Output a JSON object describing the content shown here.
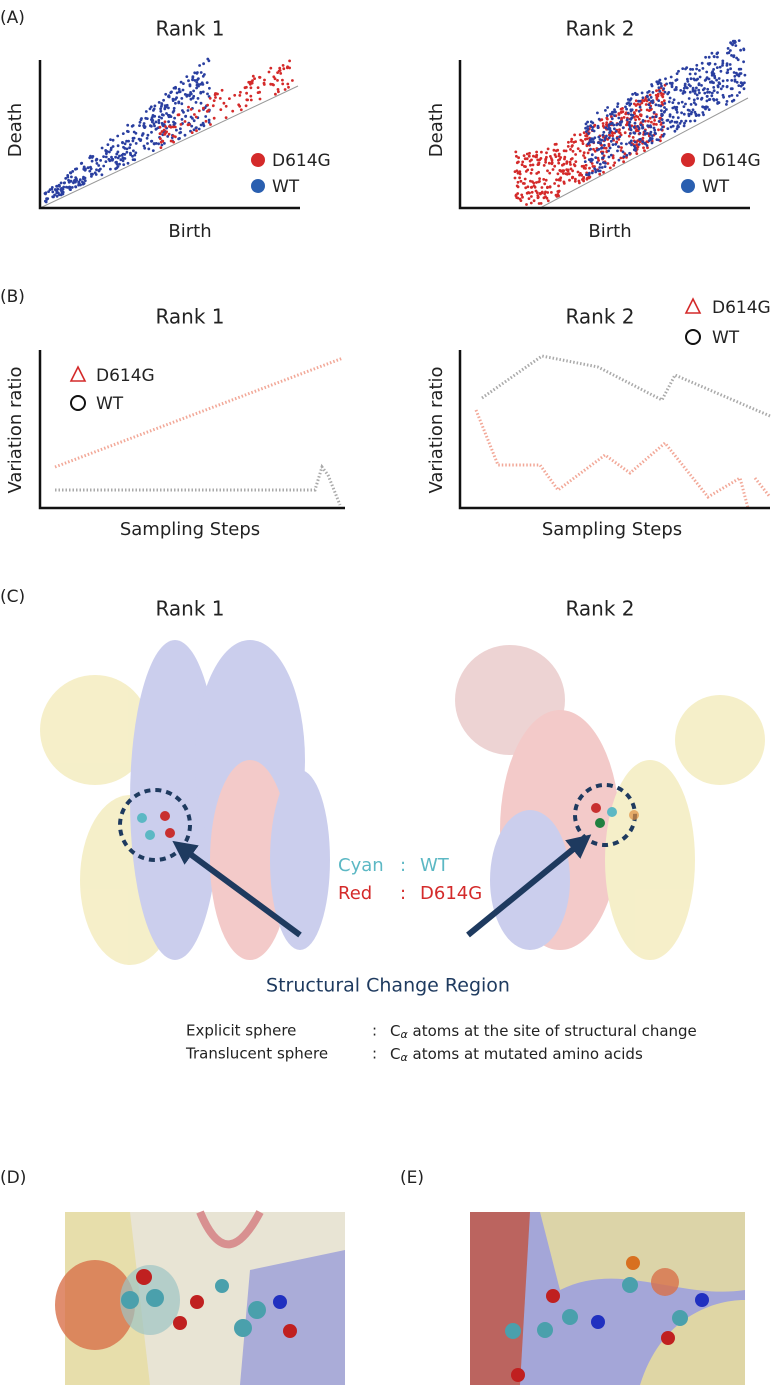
{
  "panel_labels": [
    "(A)",
    "(B)",
    "(C)",
    "(D)",
    "(E)"
  ],
  "panel_a": {
    "titles": [
      "Rank 1",
      "Rank 2"
    ],
    "y_label": "Death",
    "x_label": "Birth",
    "legend": [
      "D614G",
      "WT"
    ]
  },
  "panel_b": {
    "titles": [
      "Rank 1",
      "Rank 2"
    ],
    "y_label": "Variation ratio",
    "x_label": "Sampling Steps",
    "legend": [
      "D614G",
      "WT"
    ]
  },
  "panel_c": {
    "titles": [
      "Rank 1",
      "Rank 2"
    ],
    "color_key": [
      {
        "color": "Cyan",
        "sep": ":",
        "name": "WT"
      },
      {
        "color": "Red",
        "sep": ":",
        "name": "D614G"
      }
    ],
    "callout": "Structural Change Region",
    "notes": [
      {
        "term": "Explicit sphere",
        "sep": ":",
        "atom": "C",
        "sub": "α",
        "text": " atoms at the site of structural change"
      },
      {
        "term": "Translucent sphere",
        "sep": ":",
        "atom": "C",
        "sub": "α",
        "text": " atoms at mutated amino acids"
      }
    ]
  }
}
